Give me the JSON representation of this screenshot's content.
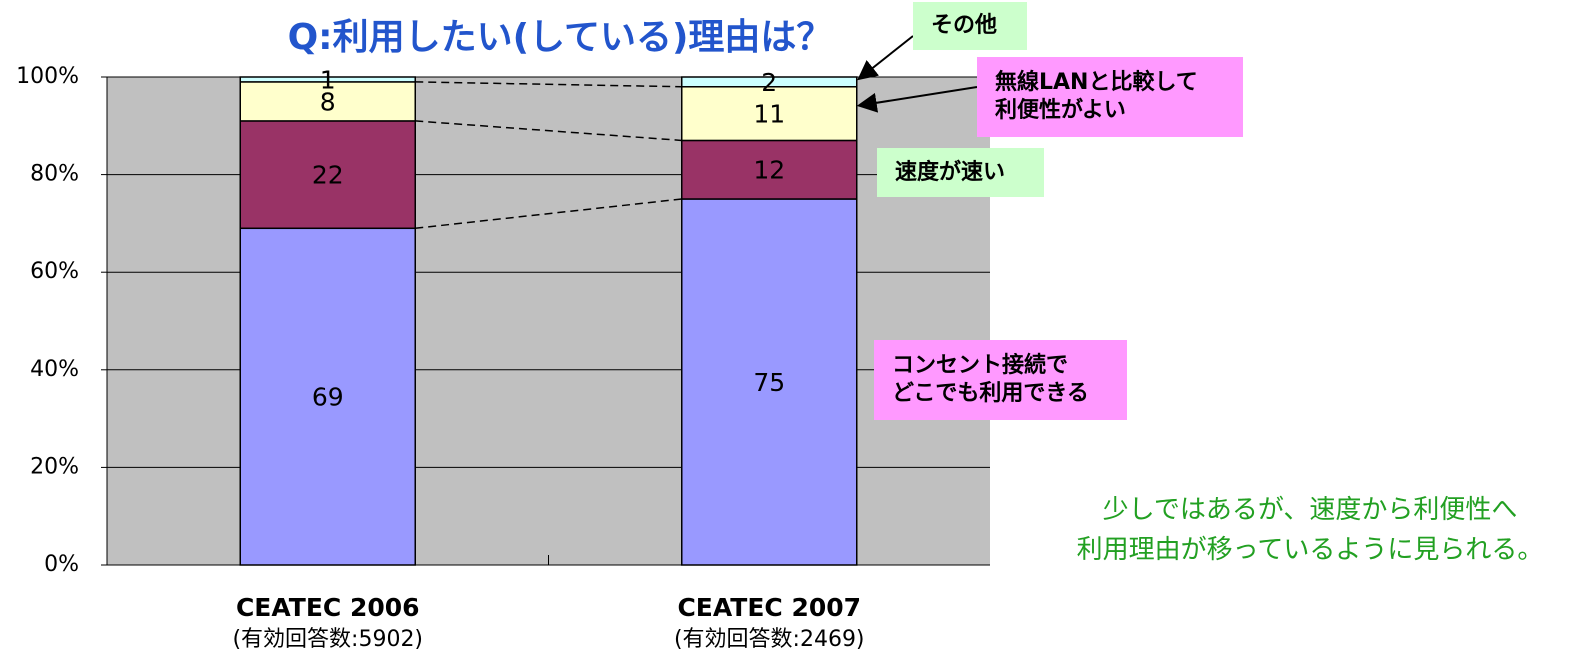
{
  "chart_data": {
    "type": "stacked_bar",
    "title": "Q:利用したい(している)理由は？",
    "categories": [
      "CEATEC 2006",
      "CEATEC 2007"
    ],
    "category_subtitles": [
      "(有効回答数:5902)",
      "(有効回答数:2469)"
    ],
    "series": [
      {
        "name": "コンセント接続で\nどこでも利用できる",
        "color": "#9999ff",
        "box_color": "#ff99ff",
        "values": [
          69,
          75
        ]
      },
      {
        "name": "速度が速い",
        "color": "#993366",
        "box_color": "#ccffcc",
        "values": [
          22,
          12
        ]
      },
      {
        "name": "無線LANと比較して\n利便性がよい",
        "color": "#ffffcc",
        "box_color": "#ff99ff",
        "values": [
          8,
          11
        ]
      },
      {
        "name": "その他",
        "color": "#ccffff",
        "box_color": "#ccffcc",
        "values": [
          1,
          2
        ]
      }
    ],
    "ylim": [
      0,
      100
    ],
    "yticks": [
      {
        "value": 0,
        "label": "0%"
      },
      {
        "value": 20,
        "label": "20%"
      },
      {
        "value": 40,
        "label": "40%"
      },
      {
        "value": 60,
        "label": "60%"
      },
      {
        "value": 80,
        "label": "80%"
      },
      {
        "value": 100,
        "label": "100%"
      }
    ],
    "grid": true,
    "annotation": "少しではあるが、速度から利便性へ\n利用理由が移っているように見られる。"
  }
}
